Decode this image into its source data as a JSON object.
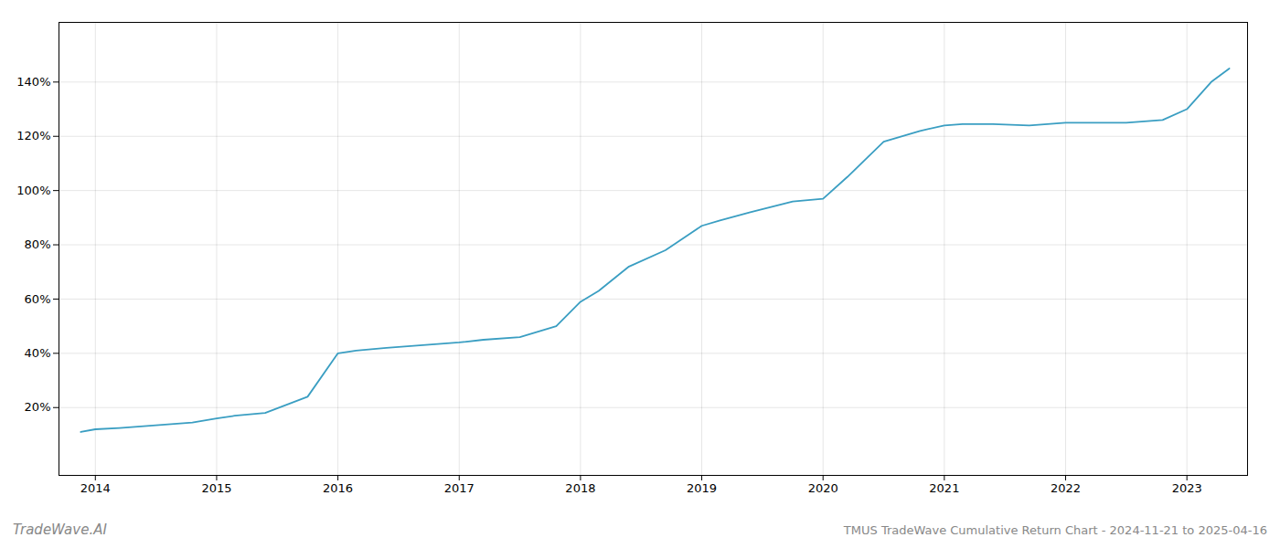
{
  "chart_data": {
    "type": "line",
    "title": "TMUS TradeWave Cumulative Return Chart - 2024-11-21 to 2025-04-16",
    "annotations": [
      "TradeWave.AI"
    ],
    "x": [
      2013.88,
      2014.0,
      2014.2,
      2014.5,
      2014.8,
      2015.0,
      2015.15,
      2015.4,
      2015.75,
      2016.0,
      2016.15,
      2016.4,
      2016.7,
      2017.0,
      2017.2,
      2017.5,
      2017.8,
      2018.0,
      2018.15,
      2018.4,
      2018.7,
      2019.0,
      2019.15,
      2019.4,
      2019.75,
      2020.0,
      2020.2,
      2020.5,
      2020.8,
      2021.0,
      2021.15,
      2021.4,
      2021.7,
      2022.0,
      2022.2,
      2022.5,
      2022.8,
      2023.0,
      2023.2,
      2023.35
    ],
    "values": [
      11,
      12,
      12.5,
      13.5,
      14.5,
      16,
      17,
      18,
      24,
      40,
      41,
      42,
      43,
      44,
      45,
      46,
      50,
      59,
      63,
      72,
      78,
      87,
      89,
      92,
      96,
      97,
      105,
      118,
      122,
      124,
      124.5,
      124.5,
      124,
      125,
      125,
      125,
      126,
      130,
      140,
      145
    ],
    "color": "#3a9ec2",
    "xlim": [
      2013.7,
      2023.5
    ],
    "xticks": [
      2014,
      2015,
      2016,
      2017,
      2018,
      2019,
      2020,
      2021,
      2022,
      2023
    ],
    "ylim": [
      -5,
      162
    ],
    "yticks": [
      {
        "value": 20,
        "label": "20%"
      },
      {
        "value": 40,
        "label": "40%"
      },
      {
        "value": 60,
        "label": "60%"
      },
      {
        "value": 80,
        "label": "80%"
      },
      {
        "value": 100,
        "label": "100%"
      },
      {
        "value": 120,
        "label": "120%"
      },
      {
        "value": 140,
        "label": "140%"
      }
    ],
    "grid": true
  }
}
